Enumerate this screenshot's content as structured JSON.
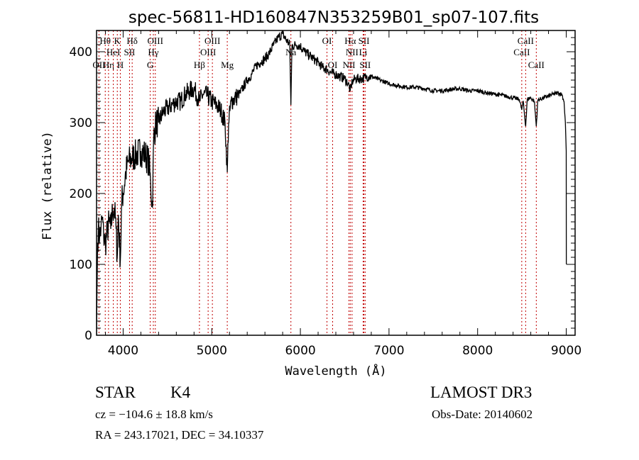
{
  "chart_data": {
    "type": "line",
    "title": "spec-56811-HD160847N353259B01_sp07-107.fits",
    "xlabel": "Wavelength (Å)",
    "ylabel": "Flux (relative)",
    "xlim": [
      3700,
      9100
    ],
    "ylim": [
      0,
      430
    ],
    "xticks": [
      4000,
      5000,
      6000,
      7000,
      8000,
      9000
    ],
    "yticks": [
      0,
      100,
      200,
      300,
      400
    ],
    "grid": false,
    "series": [
      {
        "name": "spectrum",
        "x": [
          3700,
          3705,
          3712,
          3720,
          3735,
          3750,
          3765,
          3780,
          3800,
          3820,
          3840,
          3860,
          3880,
          3900,
          3920,
          3933,
          3945,
          3968,
          3985,
          4000,
          4030,
          4060,
          4100,
          4150,
          4200,
          4250,
          4290,
          4310,
          4330,
          4345,
          4370,
          4400,
          4450,
          4500,
          4550,
          4600,
          4650,
          4700,
          4750,
          4800,
          4861,
          4900,
          4950,
          5000,
          5050,
          5100,
          5150,
          5175,
          5190,
          5220,
          5270,
          5320,
          5400,
          5450,
          5500,
          5550,
          5600,
          5650,
          5700,
          5750,
          5800,
          5850,
          5880,
          5893,
          5905,
          5950,
          6000,
          6050,
          6100,
          6150,
          6200,
          6250,
          6300,
          6350,
          6400,
          6450,
          6500,
          6540,
          6563,
          6585,
          6620,
          6700,
          6750,
          6800,
          6900,
          7000,
          7100,
          7200,
          7300,
          7400,
          7500,
          7600,
          7700,
          7800,
          7900,
          8000,
          8100,
          8200,
          8300,
          8400,
          8470,
          8498,
          8515,
          8542,
          8560,
          8600,
          8640,
          8662,
          8680,
          8750,
          8850,
          8900,
          8950,
          8975,
          8990,
          9000
        ],
        "y": [
          0,
          60,
          130,
          150,
          140,
          150,
          165,
          140,
          130,
          145,
          160,
          150,
          175,
          180,
          150,
          110,
          170,
          105,
          190,
          200,
          230,
          245,
          250,
          255,
          260,
          255,
          245,
          215,
          180,
          280,
          300,
          300,
          315,
          320,
          325,
          330,
          330,
          340,
          345,
          348,
          330,
          340,
          338,
          330,
          325,
          318,
          300,
          230,
          300,
          330,
          335,
          342,
          360,
          368,
          380,
          385,
          390,
          398,
          410,
          420,
          425,
          415,
          410,
          325,
          408,
          410,
          408,
          400,
          395,
          390,
          385,
          378,
          375,
          370,
          368,
          365,
          362,
          355,
          345,
          358,
          362,
          362,
          365,
          365,
          360,
          355,
          352,
          350,
          350,
          348,
          345,
          345,
          347,
          348,
          345,
          345,
          342,
          340,
          338,
          335,
          333,
          318,
          330,
          295,
          333,
          335,
          330,
          295,
          332,
          335,
          340,
          342,
          340,
          330,
          300,
          260
        ]
      }
    ],
    "line_markers": [
      {
        "wavelength": 3727,
        "label": "OII",
        "row": 3
      },
      {
        "wavelength": 3798,
        "label": "Hθ",
        "row": 1
      },
      {
        "wavelength": 3835,
        "label": "Hη",
        "row": 3
      },
      {
        "wavelength": 3889,
        "label": "HeI",
        "row": 2
      },
      {
        "wavelength": 3934,
        "label": "K",
        "row": 1
      },
      {
        "wavelength": 3968,
        "label": "H",
        "row": 3
      },
      {
        "wavelength": 4072,
        "label": "SII",
        "row": 2
      },
      {
        "wavelength": 4102,
        "label": "Hδ",
        "row": 1
      },
      {
        "wavelength": 4305,
        "label": "G",
        "row": 3
      },
      {
        "wavelength": 4341,
        "label": "Hγ",
        "row": 2
      },
      {
        "wavelength": 4363,
        "label": "OIII",
        "row": 1
      },
      {
        "wavelength": 4861,
        "label": "Hβ",
        "row": 3
      },
      {
        "wavelength": 4959,
        "label": "OIII",
        "row": 2
      },
      {
        "wavelength": 5007,
        "label": "OIII",
        "row": 1
      },
      {
        "wavelength": 5175,
        "label": "Mg",
        "row": 3
      },
      {
        "wavelength": 5893,
        "label": "Na",
        "row": 2
      },
      {
        "wavelength": 6300,
        "label": "OI",
        "row": 1
      },
      {
        "wavelength": 6364,
        "label": "OI",
        "row": 3
      },
      {
        "wavelength": 6548,
        "label": "NII",
        "row": 3
      },
      {
        "wavelength": 6563,
        "label": "Hα",
        "row": 1
      },
      {
        "wavelength": 6583,
        "label": "NII",
        "row": 2
      },
      {
        "wavelength": 6708,
        "label": "Li",
        "row": 2
      },
      {
        "wavelength": 6717,
        "label": "SII",
        "row": 1
      },
      {
        "wavelength": 6731,
        "label": "SII",
        "row": 3
      },
      {
        "wavelength": 8498,
        "label": "CaII",
        "row": 2
      },
      {
        "wavelength": 8542,
        "label": "CaII",
        "row": 1
      },
      {
        "wavelength": 8662,
        "label": "CaII",
        "row": 3
      }
    ],
    "colors": {
      "spectrum": "#000000",
      "marker": "#c00000"
    }
  },
  "info": {
    "class": "STAR",
    "subclass": "K4",
    "survey": "LAMOST DR3",
    "cz": "cz = −104.6 ± 18.8 km/s",
    "obs_date": "Obs-Date: 20140602",
    "coords": "RA = 243.17021, DEC =  34.10337"
  }
}
